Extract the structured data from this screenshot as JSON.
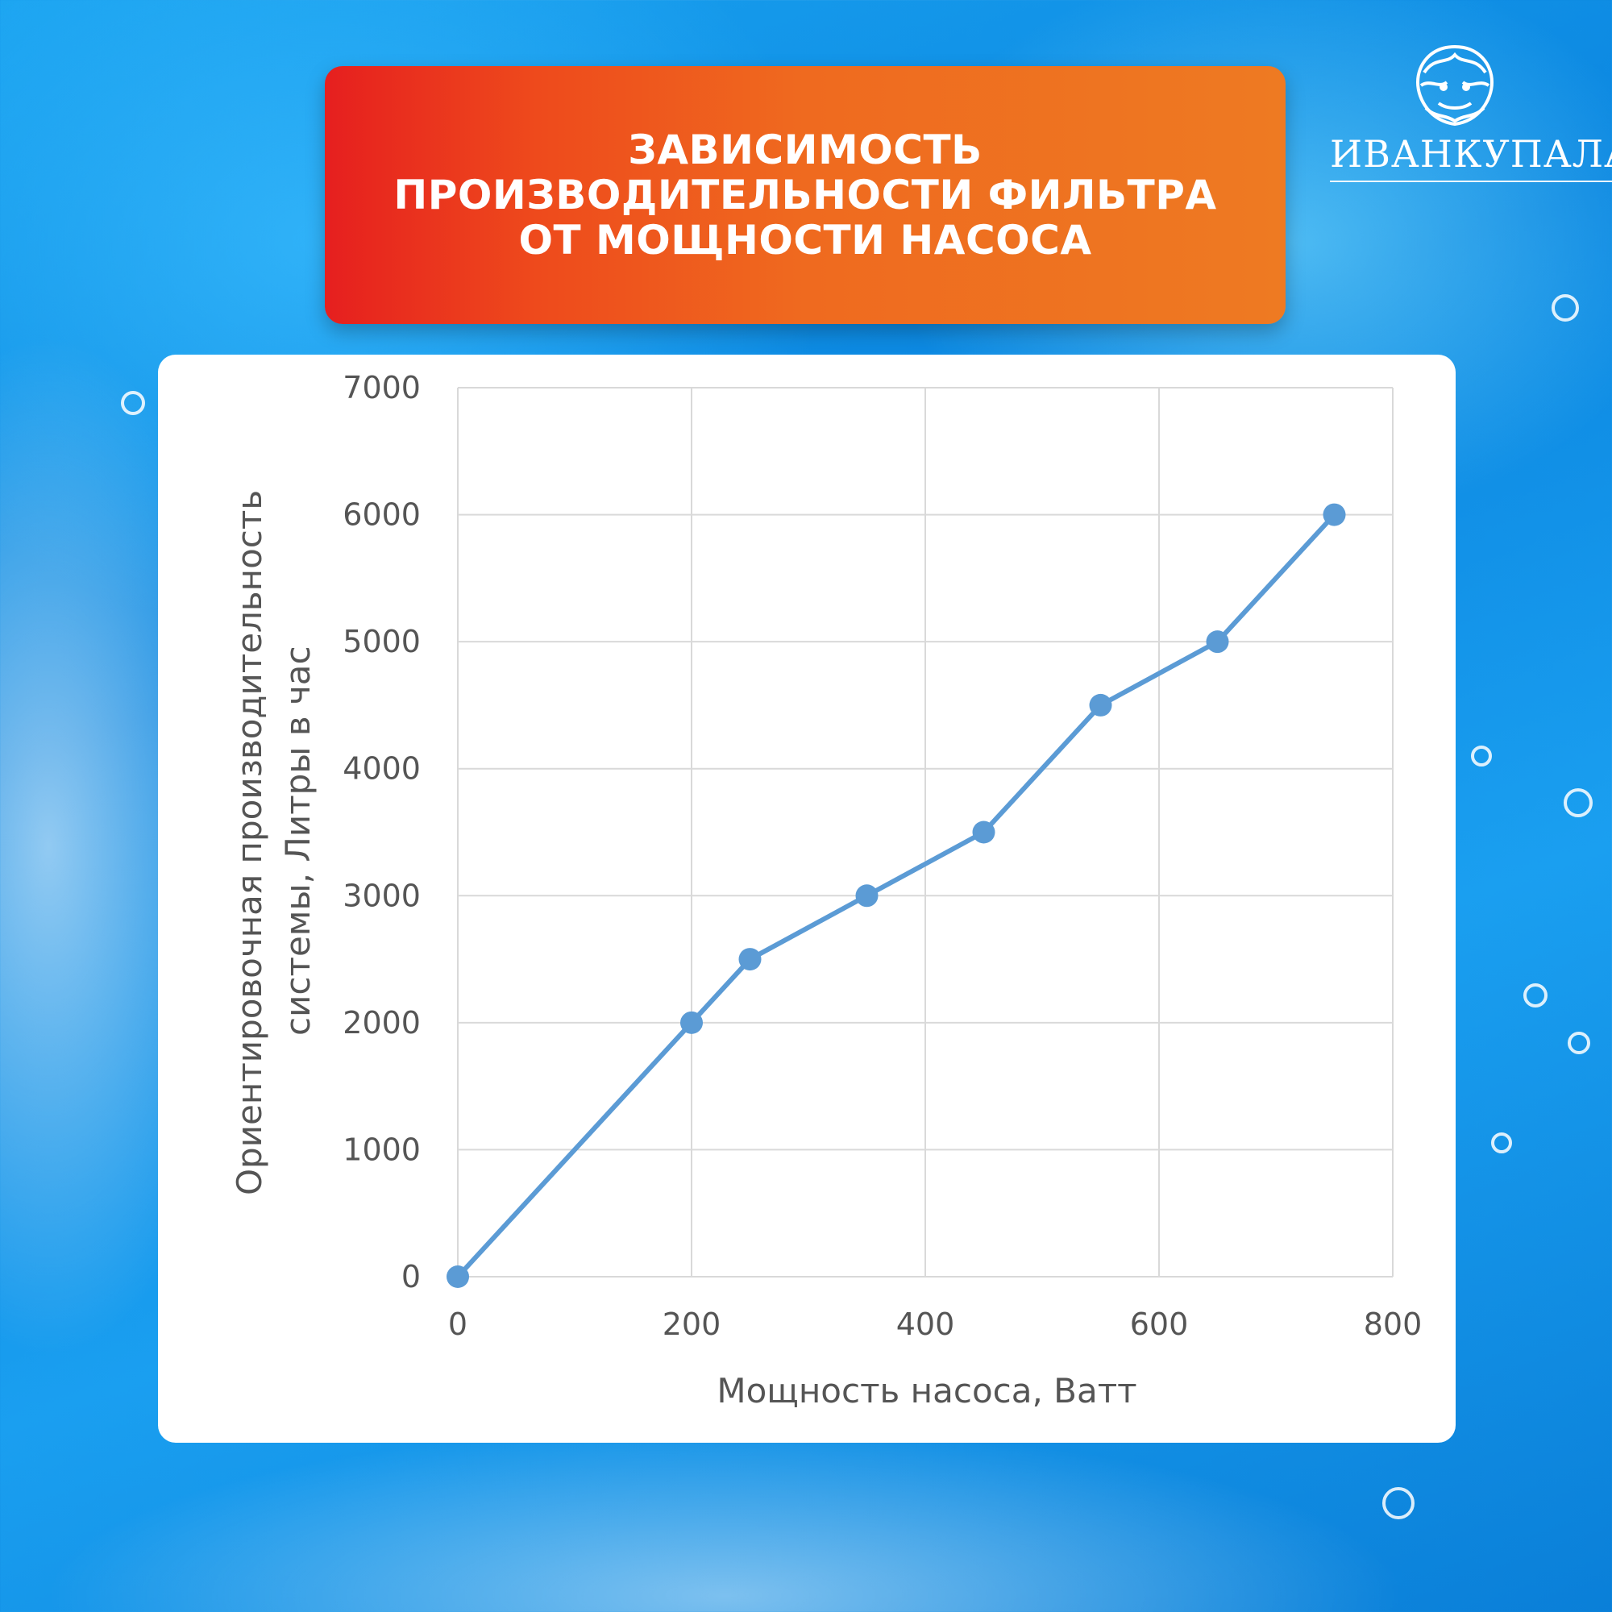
{
  "header": {
    "title": "ЗАВИСИМОСТЬ ПРОИЗВОДИТЕЛЬНОСТИ ФИЛЬТРА ОТ МОЩНОСТИ НАСОСА"
  },
  "brand": {
    "name": "ИВАНКУПАЛА"
  },
  "colors": {
    "title_gradient_start": "#e61f1f",
    "title_gradient_end": "#ee7a22",
    "series_line": "#5b9bd5",
    "background": "#1aa3f0"
  },
  "chart_data": {
    "type": "line",
    "title": "",
    "xlabel": "Мощность насоса, Ватт",
    "ylabel_lines": [
      "Ориентировочная производительность",
      "системы, Литры в час"
    ],
    "xlim": [
      0,
      800
    ],
    "ylim": [
      0,
      7000
    ],
    "x_ticks": [
      0,
      200,
      400,
      600,
      800
    ],
    "y_ticks": [
      0,
      1000,
      2000,
      3000,
      4000,
      5000,
      6000,
      7000
    ],
    "grid": true,
    "legend": "none",
    "series": [
      {
        "x": [
          0,
          200,
          250,
          350,
          450,
          550,
          650,
          750
        ],
        "values": [
          0,
          2000,
          2500,
          3000,
          3500,
          4500,
          5000,
          6000
        ]
      }
    ]
  }
}
